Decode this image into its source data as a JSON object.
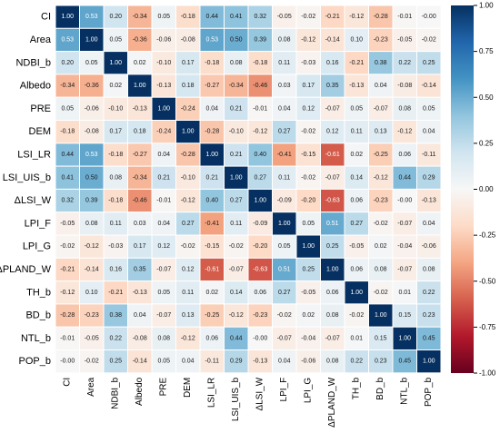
{
  "chart_data": {
    "type": "heatmap",
    "variables": [
      "CI",
      "Area",
      "NDBI_b",
      "Albedo",
      "PRE",
      "DEM",
      "LSI_LR",
      "LSI_UIS_b",
      "ΔLSI_W",
      "LPI_F",
      "LPI_G",
      "ΔPLAND_W",
      "TH_b",
      "BD_b",
      "NTL_b",
      "POP_b"
    ],
    "values": [
      [
        1.0,
        0.53,
        0.2,
        -0.34,
        0.05,
        -0.18,
        0.44,
        0.41,
        0.32,
        -0.05,
        -0.02,
        -0.21,
        -0.12,
        -0.28,
        -0.01,
        -0.0
      ],
      [
        0.53,
        1.0,
        0.05,
        -0.36,
        -0.06,
        -0.08,
        0.53,
        0.5,
        0.39,
        0.08,
        -0.12,
        -0.14,
        0.1,
        -0.23,
        -0.05,
        -0.02
      ],
      [
        0.2,
        0.05,
        1.0,
        0.02,
        -0.1,
        0.17,
        -0.18,
        0.08,
        -0.18,
        0.11,
        -0.03,
        0.16,
        -0.21,
        0.38,
        0.22,
        0.25
      ],
      [
        -0.34,
        -0.36,
        0.02,
        1.0,
        -0.13,
        0.18,
        -0.27,
        -0.34,
        -0.46,
        0.03,
        0.17,
        0.35,
        -0.13,
        0.04,
        -0.08,
        -0.14
      ],
      [
        0.05,
        -0.06,
        -0.1,
        -0.13,
        1.0,
        -0.24,
        0.04,
        0.21,
        -0.01,
        0.04,
        0.12,
        -0.07,
        0.05,
        -0.07,
        0.08,
        0.05
      ],
      [
        -0.18,
        -0.08,
        0.17,
        0.18,
        -0.24,
        1.0,
        -0.28,
        -0.1,
        -0.12,
        0.27,
        -0.02,
        0.12,
        0.11,
        0.13,
        -0.12,
        0.04
      ],
      [
        0.44,
        0.53,
        -0.18,
        -0.27,
        0.04,
        -0.28,
        1.0,
        0.21,
        0.4,
        -0.41,
        -0.15,
        -0.61,
        0.02,
        -0.25,
        0.06,
        -0.11
      ],
      [
        0.41,
        0.5,
        0.08,
        -0.34,
        0.21,
        -0.1,
        0.21,
        1.0,
        0.27,
        0.11,
        -0.02,
        -0.07,
        0.14,
        -0.12,
        0.44,
        0.29
      ],
      [
        0.32,
        0.39,
        -0.18,
        -0.46,
        -0.01,
        -0.12,
        0.4,
        0.27,
        1.0,
        -0.09,
        -0.2,
        -0.63,
        0.06,
        -0.23,
        -0.0,
        -0.13
      ],
      [
        -0.05,
        0.08,
        0.11,
        0.03,
        0.04,
        0.27,
        -0.41,
        0.11,
        -0.09,
        1.0,
        0.05,
        0.51,
        0.27,
        -0.02,
        -0.07,
        0.04
      ],
      [
        -0.02,
        -0.12,
        -0.03,
        0.17,
        0.12,
        -0.02,
        -0.15,
        -0.02,
        -0.2,
        0.05,
        1.0,
        0.25,
        -0.05,
        0.02,
        -0.04,
        -0.06
      ],
      [
        -0.21,
        -0.14,
        0.16,
        0.35,
        -0.07,
        0.12,
        -0.61,
        -0.07,
        -0.63,
        0.51,
        0.25,
        1.0,
        0.06,
        0.08,
        -0.07,
        0.08
      ],
      [
        -0.12,
        0.1,
        -0.21,
        -0.13,
        0.05,
        0.11,
        0.02,
        0.14,
        0.06,
        0.27,
        -0.05,
        0.06,
        1.0,
        -0.02,
        0.01,
        0.22
      ],
      [
        -0.28,
        -0.23,
        0.38,
        0.04,
        -0.07,
        0.13,
        -0.25,
        -0.12,
        -0.23,
        -0.02,
        0.02,
        0.08,
        -0.02,
        1.0,
        0.15,
        0.23
      ],
      [
        -0.01,
        -0.05,
        0.22,
        -0.08,
        0.08,
        -0.12,
        0.06,
        0.44,
        -0.0,
        -0.07,
        -0.04,
        -0.07,
        0.01,
        0.15,
        1.0,
        0.45
      ],
      [
        -0.0,
        -0.02,
        0.25,
        -0.14,
        0.05,
        0.04,
        -0.11,
        0.29,
        -0.13,
        0.04,
        -0.06,
        0.08,
        0.22,
        0.23,
        0.45,
        1.0
      ]
    ],
    "colorbar": {
      "range": [
        -1.0,
        1.0
      ],
      "ticks": [
        1.0,
        0.75,
        0.5,
        0.25,
        0.0,
        -0.25,
        -0.5,
        -0.75,
        -1.0
      ],
      "tick_labels": [
        "1.00",
        "0.75",
        "0.50",
        "0.25",
        "0.00",
        "-0.25",
        "-0.50",
        "-0.75",
        "-1.00"
      ],
      "colormap": "RdBu",
      "colors": [
        "#67001f",
        "#b2182b",
        "#d6604d",
        "#f4a582",
        "#fddbc7",
        "#f7f7f7",
        "#d1e5f0",
        "#92c5de",
        "#4393c3",
        "#2166ac",
        "#053061"
      ]
    },
    "cell_label_format": "2 decimals",
    "title": "",
    "xlabel": "",
    "ylabel": ""
  }
}
